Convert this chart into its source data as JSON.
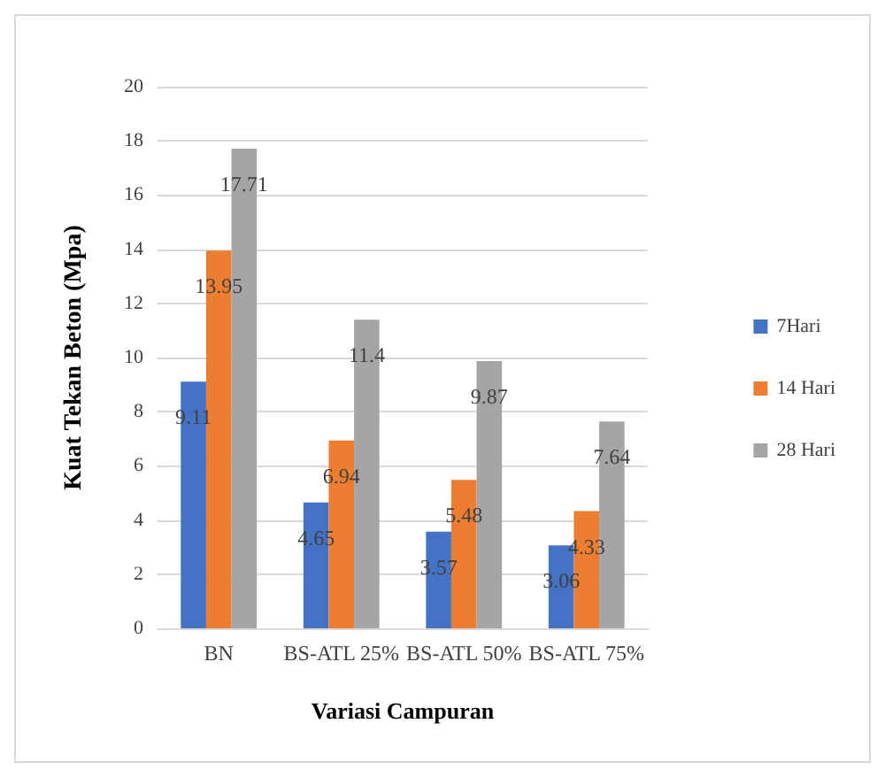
{
  "chart_data": {
    "type": "bar",
    "xlabel": "Variasi Campuran",
    "ylabel": "Kuat Tekan Beton (Mpa)",
    "categories": [
      "BN",
      "BS-ATL 25%",
      "BS-ATL 50%",
      "BS-ATL 75%"
    ],
    "series": [
      {
        "name": "7Hari",
        "color": "#4472c4",
        "values": [
          9.11,
          4.65,
          3.57,
          3.06
        ]
      },
      {
        "name": "14 Hari",
        "color": "#ed7d31",
        "values": [
          13.95,
          6.94,
          5.48,
          4.33
        ]
      },
      {
        "name": "28 Hari",
        "color": "#a5a5a5",
        "values": [
          17.71,
          11.4,
          9.87,
          7.64
        ]
      }
    ],
    "ylim": [
      0,
      20
    ],
    "yticks": [
      0,
      2,
      4,
      6,
      8,
      10,
      12,
      14,
      16,
      18,
      20
    ],
    "grid": "y",
    "legend": "right",
    "data_labels": true
  }
}
